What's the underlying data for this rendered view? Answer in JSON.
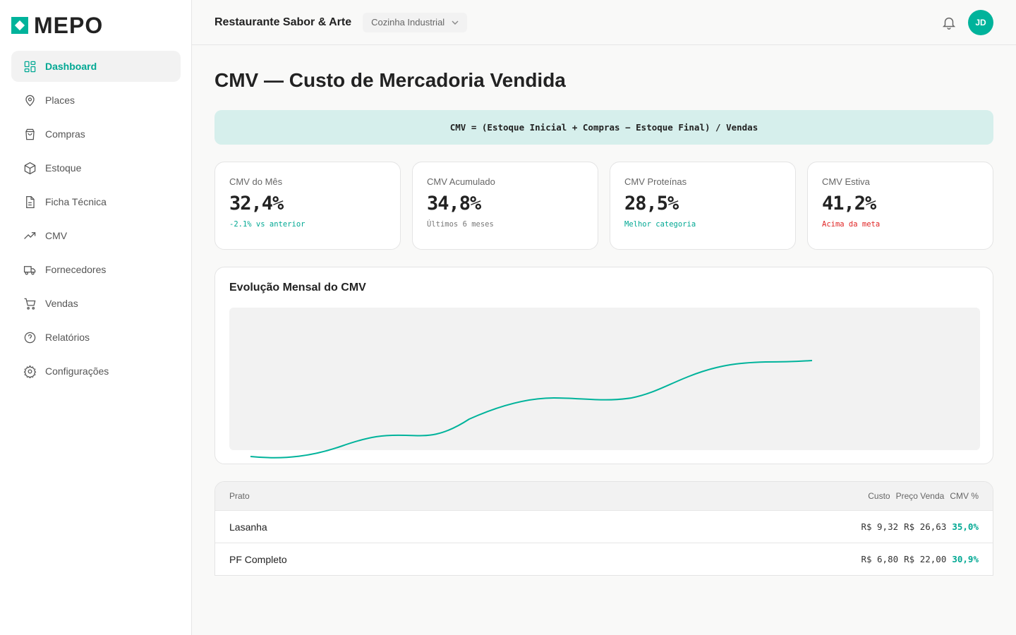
{
  "brand": {
    "name": "MEPO",
    "accent": "#00b39b"
  },
  "sidebar": {
    "items": [
      {
        "label": "Dashboard",
        "icon": "grid-icon",
        "active": true
      },
      {
        "label": "Places",
        "icon": "map-pin-icon"
      },
      {
        "label": "Compras",
        "icon": "shopping-bag-icon"
      },
      {
        "label": "Estoque",
        "icon": "package-icon"
      },
      {
        "label": "Ficha Técnica",
        "icon": "file-text-icon"
      },
      {
        "label": "CMV",
        "icon": "trending-up-icon"
      },
      {
        "label": "Fornecedores",
        "icon": "truck-icon"
      },
      {
        "label": "Vendas",
        "icon": "cart-icon"
      },
      {
        "label": "Relatórios",
        "icon": "help-circle-icon"
      },
      {
        "label": "Configurações",
        "icon": "gear-icon"
      }
    ]
  },
  "header": {
    "restaurant": "Restaurante Sabor & Arte",
    "unit": "Cozinha Industrial",
    "avatar": "JD"
  },
  "main": {
    "title": "CMV — Custo de Mercadoria Vendida",
    "formula": "CMV = (Estoque Inicial + Compras − Estoque Final) / Vendas",
    "cards": [
      {
        "label": "CMV do Mês",
        "value": "32,4%",
        "sub": "-2.1% vs anterior",
        "sub_color": "#00a893"
      },
      {
        "label": "CMV Acumulado",
        "value": "34,8%",
        "sub": "Últimos 6 meses",
        "sub_color": "#777777"
      },
      {
        "label": "CMV Proteínas",
        "value": "28,5%",
        "sub": "Melhor categoria",
        "sub_color": "#00a893"
      },
      {
        "label": "CMV Estiva",
        "value": "41,2%",
        "sub": "Acima da meta",
        "sub_color": "#e02424"
      }
    ],
    "chart_title": "Evolução Mensal do CMV",
    "table": {
      "headers": [
        "Prato",
        "Custo",
        "Preço Venda",
        "CMV %"
      ],
      "rows": [
        [
          "Lasanha",
          "R$ 9,32",
          "R$ 26,63",
          "35,0%"
        ],
        [
          "PF Completo",
          "R$ 6,80",
          "R$ 22,00",
          "30,9%"
        ]
      ]
    }
  }
}
